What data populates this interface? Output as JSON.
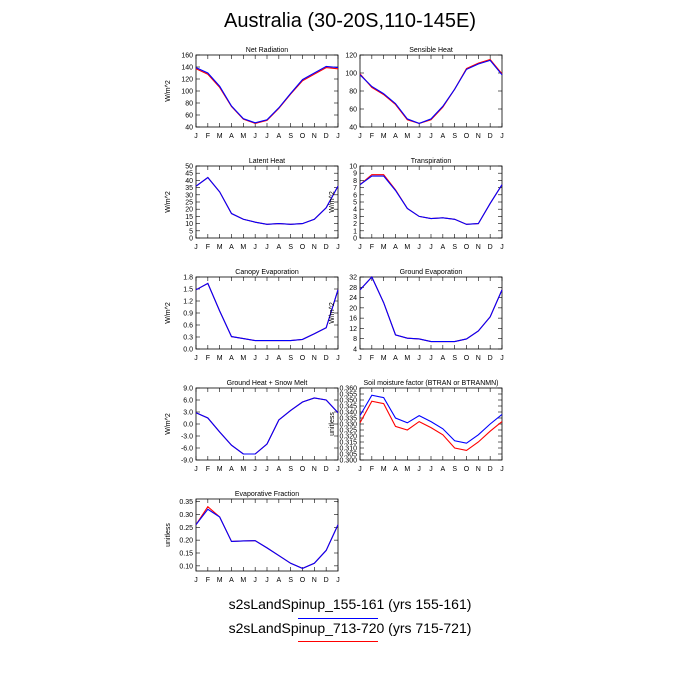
{
  "title": "Australia (30-20S,110-145E)",
  "months": [
    "J",
    "F",
    "M",
    "A",
    "M",
    "J",
    "J",
    "A",
    "S",
    "O",
    "N",
    "D",
    "J"
  ],
  "series_colors": [
    "#0000ff",
    "#ff0000"
  ],
  "legend": [
    {
      "label": "s2sLandSpinup_155-161 (yrs 155-161)",
      "color": "#0000ff"
    },
    {
      "label": "s2sLandSpinup_713-720 (yrs 715-721)",
      "color": "#ff0000"
    }
  ],
  "chart_data": [
    {
      "type": "line",
      "title": "Net Radiation",
      "ylabel": "W/m^2",
      "ylim": [
        40,
        160
      ],
      "yticks": [
        "40",
        "60",
        "80",
        "100",
        "120",
        "140",
        "160"
      ],
      "series": [
        {
          "values": [
            139,
            130,
            108,
            75,
            54,
            47,
            52,
            72,
            96,
            119,
            130,
            141,
            139
          ]
        },
        {
          "values": [
            137,
            128,
            106,
            74,
            53,
            46,
            51,
            71,
            95,
            117,
            128,
            139,
            137
          ]
        }
      ]
    },
    {
      "type": "line",
      "title": "Sensible Heat",
      "ylabel": "",
      "ylim": [
        40,
        120
      ],
      "yticks": [
        "40",
        "60",
        "80",
        "100",
        "120"
      ],
      "series": [
        {
          "values": [
            98,
            85,
            77,
            66,
            49,
            44,
            49,
            63,
            82,
            104,
            110,
            114,
            98
          ]
        },
        {
          "values": [
            99,
            84,
            76,
            65,
            48,
            44,
            48,
            62,
            82,
            105,
            111,
            115,
            99
          ]
        }
      ]
    },
    {
      "type": "line",
      "title": "Latent Heat",
      "ylabel": "W/m^2",
      "ylim": [
        0,
        50
      ],
      "yticks": [
        "0",
        "5",
        "10",
        "15",
        "20",
        "25",
        "30",
        "35",
        "40",
        "45",
        "50"
      ],
      "series": [
        {
          "values": [
            36,
            42,
            32,
            17,
            13,
            11,
            9.5,
            10,
            9.5,
            10,
            13,
            21,
            36
          ]
        },
        {
          "values": [
            36,
            42,
            32,
            17,
            13,
            11,
            9.5,
            10,
            9.5,
            10,
            13,
            21,
            36
          ]
        }
      ]
    },
    {
      "type": "line",
      "title": "Transpiration",
      "ylabel": "W/m^2",
      "ylim": [
        0,
        10
      ],
      "yticks": [
        "0",
        "1",
        "2",
        "3",
        "4",
        "5",
        "6",
        "7",
        "8",
        "9",
        "10"
      ],
      "series": [
        {
          "values": [
            7.4,
            8.6,
            8.6,
            6.6,
            4.1,
            3.0,
            2.7,
            2.8,
            2.6,
            1.9,
            2.0,
            4.8,
            7.4
          ]
        },
        {
          "values": [
            7.4,
            8.8,
            8.8,
            6.7,
            4.1,
            3.0,
            2.7,
            2.8,
            2.6,
            1.9,
            2.0,
            4.8,
            7.4
          ]
        }
      ]
    },
    {
      "type": "line",
      "title": "Canopy Evaporation",
      "ylabel": "W/m^2",
      "ylim": [
        0.0,
        1.8
      ],
      "yticks": [
        "0.0",
        "0.3",
        "0.6",
        "0.9",
        "1.2",
        "1.5",
        "1.8"
      ],
      "series": [
        {
          "values": [
            1.48,
            1.64,
            0.95,
            0.31,
            0.26,
            0.21,
            0.21,
            0.21,
            0.21,
            0.24,
            0.38,
            0.53,
            1.48
          ]
        },
        {
          "values": [
            1.48,
            1.64,
            0.95,
            0.31,
            0.26,
            0.21,
            0.21,
            0.21,
            0.21,
            0.24,
            0.38,
            0.53,
            1.48
          ]
        }
      ]
    },
    {
      "type": "line",
      "title": "Ground Evaporation",
      "ylabel": "W/m^2",
      "ylim": [
        4,
        32
      ],
      "yticks": [
        "4",
        "8",
        "12",
        "16",
        "20",
        "24",
        "28",
        "32"
      ],
      "series": [
        {
          "values": [
            27,
            32,
            22,
            9.5,
            8.2,
            7.9,
            6.9,
            6.9,
            6.9,
            7.9,
            11,
            16.5,
            27
          ]
        },
        {
          "values": [
            27,
            32,
            22,
            9.5,
            8.2,
            7.9,
            6.9,
            6.9,
            6.9,
            7.9,
            11,
            16.5,
            27
          ]
        }
      ]
    },
    {
      "type": "line",
      "title": "Ground Heat + Snow Melt",
      "ylabel": "W/m^2",
      "ylim": [
        -9.0,
        9.0
      ],
      "yticks": [
        "-9.0",
        "-6.0",
        "-3.0",
        "0.0",
        "3.0",
        "6.0",
        "9.0"
      ],
      "series": [
        {
          "values": [
            2.8,
            1.5,
            -2.0,
            -5.3,
            -7.5,
            -7.5,
            -5.0,
            1.0,
            3.4,
            5.5,
            6.5,
            6.0,
            2.8
          ]
        },
        {
          "values": [
            2.8,
            1.5,
            -2.0,
            -5.3,
            -7.5,
            -7.5,
            -5.0,
            1.0,
            3.4,
            5.5,
            6.5,
            6.0,
            2.8
          ]
        }
      ]
    },
    {
      "type": "line",
      "title": "Soil moisture factor (BTRAN or BTRANMN)",
      "ylabel": "unitless",
      "ylim": [
        0.3,
        0.36
      ],
      "yticks": [
        "0.300",
        "0.305",
        "0.310",
        "0.315",
        "0.320",
        "0.325",
        "0.330",
        "0.335",
        "0.340",
        "0.345",
        "0.350",
        "0.355",
        "0.360"
      ],
      "series": [
        {
          "values": [
            0.337,
            0.354,
            0.352,
            0.335,
            0.331,
            0.337,
            0.332,
            0.326,
            0.316,
            0.314,
            0.321,
            0.33,
            0.338
          ]
        },
        {
          "values": [
            0.331,
            0.349,
            0.347,
            0.328,
            0.325,
            0.332,
            0.327,
            0.321,
            0.31,
            0.308,
            0.315,
            0.324,
            0.332
          ]
        }
      ]
    },
    {
      "type": "line",
      "title": "Evaporative Fraction",
      "ylabel": "unitless",
      "ylim": [
        0.08,
        0.36
      ],
      "yticks": [
        "0.10",
        "0.15",
        "0.20",
        "0.25",
        "0.30",
        "0.35"
      ],
      "series": [
        {
          "values": [
            0.26,
            0.32,
            0.29,
            0.195,
            0.197,
            0.198,
            0.17,
            0.14,
            0.11,
            0.09,
            0.11,
            0.16,
            0.26
          ]
        },
        {
          "values": [
            0.26,
            0.33,
            0.29,
            0.195,
            0.197,
            0.198,
            0.17,
            0.14,
            0.11,
            0.09,
            0.11,
            0.16,
            0.26
          ]
        }
      ]
    }
  ]
}
